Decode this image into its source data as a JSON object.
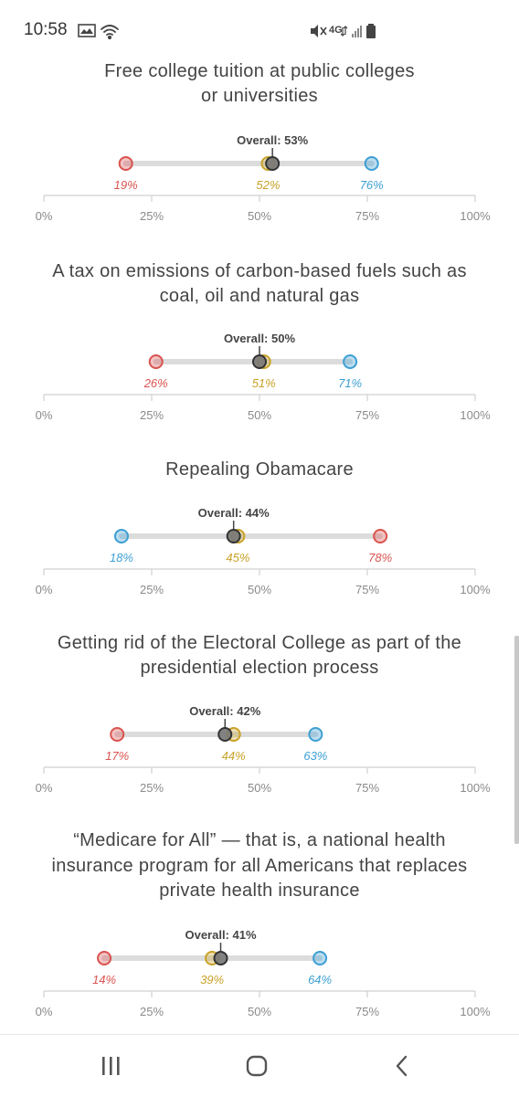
{
  "status_bar": {
    "time": "10:58",
    "left_icons": [
      "gallery-icon",
      "wifi-icon"
    ],
    "right_icons": [
      "mute-icon",
      "lte-icon",
      "signal-icon",
      "battery-icon"
    ],
    "network_label": "4G"
  },
  "axis_ticks": [
    "0%",
    "25%",
    "50%",
    "75%",
    "100%"
  ],
  "colors": {
    "republican": "#d9534f",
    "independent": "#c9a227",
    "democrat": "#3d9fd3",
    "overall": "#555555",
    "track": "#dcdcdc"
  },
  "chart_data": [
    {
      "type": "dot-range",
      "title": [
        "Free college tuition at public colleges",
        "or universities"
      ],
      "overall": 53,
      "overall_label": "Overall: 53%",
      "points": [
        {
          "value": 19,
          "label": "19%",
          "color": "republican"
        },
        {
          "value": 52,
          "label": "52%",
          "color": "independent"
        },
        {
          "value": 76,
          "label": "76%",
          "color": "democrat"
        }
      ],
      "xlim": [
        0,
        100
      ]
    },
    {
      "type": "dot-range",
      "title": [
        "A tax on emissions of carbon-based fuels such as",
        "coal, oil and natural gas"
      ],
      "overall": 50,
      "overall_label": "Overall: 50%",
      "points": [
        {
          "value": 26,
          "label": "26%",
          "color": "republican"
        },
        {
          "value": 51,
          "label": "51%",
          "color": "independent"
        },
        {
          "value": 71,
          "label": "71%",
          "color": "democrat"
        }
      ],
      "xlim": [
        0,
        100
      ]
    },
    {
      "type": "dot-range",
      "title": [
        "Repealing Obamacare"
      ],
      "overall": 44,
      "overall_label": "Overall: 44%",
      "points": [
        {
          "value": 18,
          "label": "18%",
          "color": "democrat"
        },
        {
          "value": 45,
          "label": "45%",
          "color": "independent"
        },
        {
          "value": 78,
          "label": "78%",
          "color": "republican"
        }
      ],
      "xlim": [
        0,
        100
      ]
    },
    {
      "type": "dot-range",
      "title": [
        "Getting rid of the Electoral College as part of the",
        "presidential election process"
      ],
      "overall": 42,
      "overall_label": "Overall: 42%",
      "points": [
        {
          "value": 17,
          "label": "17%",
          "color": "republican"
        },
        {
          "value": 44,
          "label": "44%",
          "color": "independent"
        },
        {
          "value": 63,
          "label": "63%",
          "color": "democrat"
        }
      ],
      "xlim": [
        0,
        100
      ]
    },
    {
      "type": "dot-range",
      "title": [
        "“Medicare for All” — that is, a national health",
        "insurance program for all Americans that replaces",
        "private health insurance"
      ],
      "overall": 41,
      "overall_label": "Overall: 41%",
      "points": [
        {
          "value": 14,
          "label": "14%",
          "color": "republican"
        },
        {
          "value": 39,
          "label": "39%",
          "color": "independent"
        },
        {
          "value": 64,
          "label": "64%",
          "color": "democrat"
        }
      ],
      "xlim": [
        0,
        100
      ]
    }
  ],
  "nav_bar": {
    "buttons": [
      "recent-apps",
      "home",
      "back"
    ]
  }
}
